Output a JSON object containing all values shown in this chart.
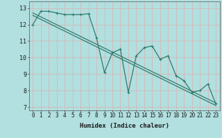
{
  "xlabel": "Humidex (Indice chaleur)",
  "background_color": "#b2dfdf",
  "grid_color": "#d4b8b8",
  "line_color": "#2e7b6e",
  "x_data": [
    0,
    1,
    2,
    3,
    4,
    5,
    6,
    7,
    8,
    9,
    10,
    11,
    12,
    13,
    14,
    15,
    16,
    17,
    18,
    19,
    20,
    21,
    22,
    23
  ],
  "y_data": [
    12.0,
    12.8,
    12.8,
    12.7,
    12.6,
    12.6,
    12.6,
    12.65,
    11.2,
    9.1,
    10.3,
    10.5,
    7.9,
    10.1,
    10.6,
    10.7,
    9.9,
    10.1,
    8.9,
    8.6,
    7.9,
    8.0,
    8.4,
    7.2
  ],
  "trend1_x": [
    0,
    23
  ],
  "trend1_y": [
    12.7,
    7.25
  ],
  "trend2_x": [
    0,
    23
  ],
  "trend2_y": [
    12.55,
    7.1
  ],
  "ylim": [
    6.8,
    13.4
  ],
  "xlim": [
    -0.5,
    23.5
  ],
  "yticks": [
    7,
    8,
    9,
    10,
    11,
    12,
    13
  ],
  "xticks": [
    0,
    1,
    2,
    3,
    4,
    5,
    6,
    7,
    8,
    9,
    10,
    11,
    12,
    13,
    14,
    15,
    16,
    17,
    18,
    19,
    20,
    21,
    22,
    23
  ],
  "tick_fontsize": 5.5,
  "xlabel_fontsize": 6.5,
  "marker_size": 2.2,
  "line_width": 0.9
}
